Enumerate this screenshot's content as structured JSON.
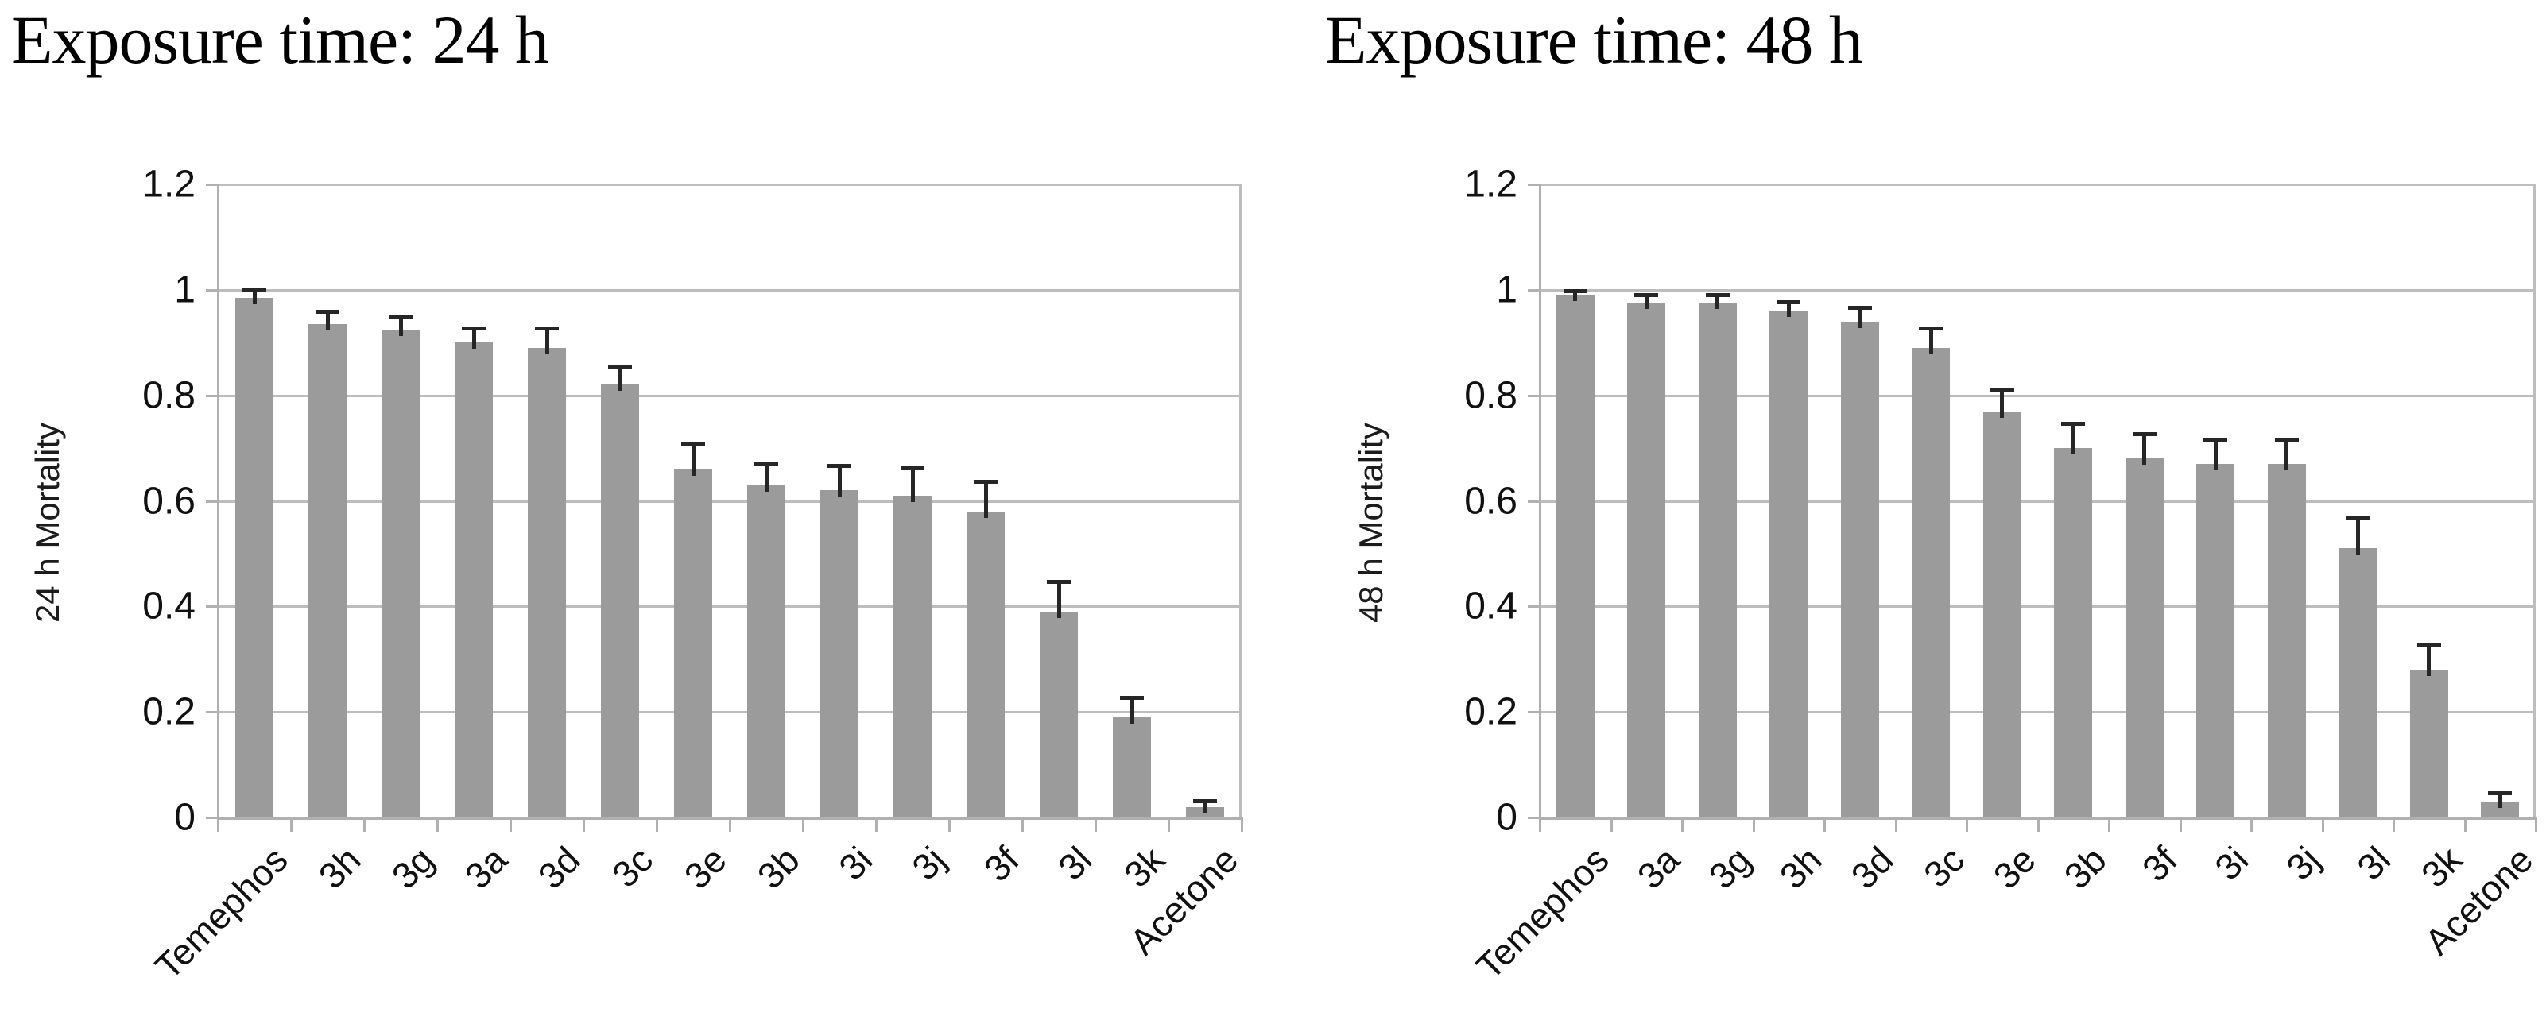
{
  "figure": {
    "background": "#ffffff",
    "colors": {
      "bar": "#9b9b9b",
      "gridline": "#bdbdbd",
      "axis": "#b0b0b0",
      "error_bar": "#262626",
      "text": "#111111",
      "title_text": "#000000"
    }
  },
  "chart_data": [
    {
      "type": "bar",
      "title": "Exposure time: 24 h",
      "ylabel": "24 h Mortality",
      "xlabel": "",
      "ylim": [
        0,
        1.2
      ],
      "yticks": [
        "0",
        "0.2",
        "0.4",
        "0.6",
        "0.8",
        "1",
        "1.2"
      ],
      "grid": true,
      "legend": false,
      "bar_color": "#9b9b9b",
      "error_bars": true,
      "categories": [
        "Temephos",
        "3h",
        "3g",
        "3a",
        "3d",
        "3c",
        "3e",
        "3b",
        "3i",
        "3j",
        "3f",
        "3l",
        "3k",
        "Acetone"
      ],
      "values": [
        0.985,
        0.935,
        0.925,
        0.9,
        0.89,
        0.82,
        0.66,
        0.63,
        0.62,
        0.61,
        0.58,
        0.39,
        0.19,
        0.02
      ],
      "errors": [
        0.02,
        0.027,
        0.027,
        0.03,
        0.04,
        0.037,
        0.05,
        0.045,
        0.05,
        0.055,
        0.06,
        0.06,
        0.04,
        0.015
      ]
    },
    {
      "type": "bar",
      "title": "Exposure time: 48 h",
      "ylabel": "48 h Mortality",
      "xlabel": "",
      "ylim": [
        0,
        1.2
      ],
      "yticks": [
        "0",
        "0.2",
        "0.4",
        "0.6",
        "0.8",
        "1",
        "1.2"
      ],
      "grid": true,
      "legend": false,
      "bar_color": "#9b9b9b",
      "error_bars": true,
      "categories": [
        "Temephos",
        "3a",
        "3g",
        "3h",
        "3d",
        "3c",
        "3e",
        "3b",
        "3f",
        "3i",
        "3j",
        "3l",
        "3k",
        "Acetone"
      ],
      "values": [
        0.99,
        0.975,
        0.975,
        0.96,
        0.94,
        0.89,
        0.77,
        0.7,
        0.68,
        0.67,
        0.67,
        0.51,
        0.28,
        0.03
      ],
      "errors": [
        0.012,
        0.018,
        0.018,
        0.02,
        0.03,
        0.04,
        0.045,
        0.05,
        0.05,
        0.05,
        0.05,
        0.06,
        0.05,
        0.02
      ]
    }
  ]
}
